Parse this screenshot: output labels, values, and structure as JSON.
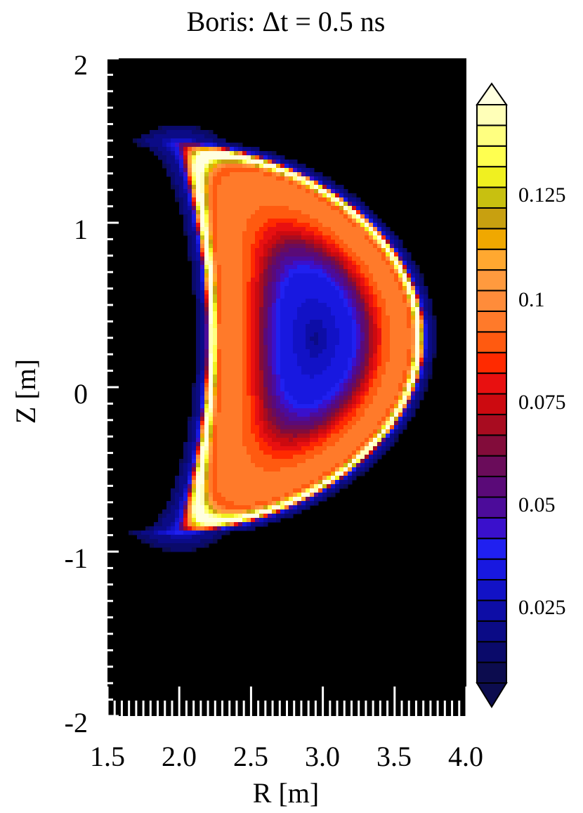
{
  "chart_data": {
    "type": "heatmap",
    "title": "Boris: Δt = 0.5 ns",
    "xlabel": "R [m]",
    "ylabel": "Z [m]",
    "xlim": [
      1.5,
      4.0
    ],
    "ylim": [
      -2,
      2
    ],
    "x_ticks": [
      "1.5",
      "2.0",
      "2.5",
      "3.0",
      "3.5",
      "4.0"
    ],
    "y_ticks": [
      "2",
      "1",
      "0",
      "-1",
      "-2"
    ],
    "background": "#000000",
    "colorbar": {
      "range": [
        0,
        0.14
      ],
      "levels": 28,
      "extend": "both",
      "tick_values": [
        0.025,
        0.05,
        0.075,
        0.1,
        0.125
      ],
      "tick_labels": [
        "0.025",
        "0.05",
        "0.075",
        "0.1",
        "0.125"
      ],
      "colors": [
        "#0c0c4e",
        "#0a0a6a",
        "#0b0b86",
        "#0d0da6",
        "#1212c6",
        "#1818e0",
        "#2020f0",
        "#3a10cc",
        "#4c0c9a",
        "#5a0a78",
        "#6a0c5a",
        "#820c3a",
        "#a80c20",
        "#cc0a10",
        "#e81010",
        "#ff2a00",
        "#ff5a10",
        "#ff7a2a",
        "#ff8c3a",
        "#ff9a3e",
        "#ffa830",
        "#f0a800",
        "#c8a010",
        "#c8c010",
        "#f0f020",
        "#ffff50",
        "#ffff80",
        "#ffffb8"
      ],
      "under_color": "#0c0c4e",
      "over_color": "#ffffe0"
    },
    "field_description": "Toroidal ring distribution centered near R=3.0 m, Z=0.3 m; low values (~0.01-0.02) at core, ~0.06-0.07 red bands, ~0.09-0.10 orange plateau, peak ~0.14 bright ring near outer edge, blue halo at boundary"
  }
}
